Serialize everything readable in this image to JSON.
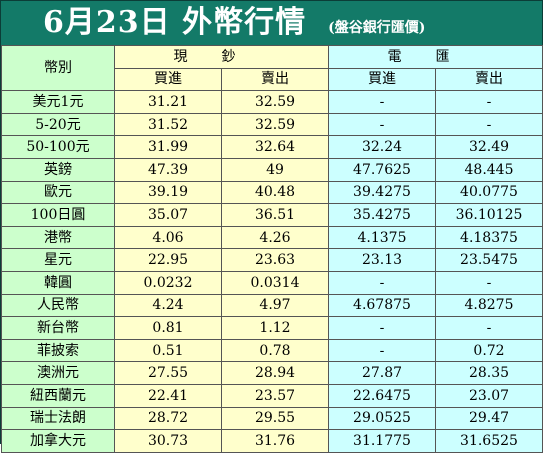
{
  "header": {
    "title": "6月23日 外幣行情",
    "subtitle": "(盤谷銀行匯價)"
  },
  "table": {
    "corner_label": "幣別",
    "groups": [
      "現鈔",
      "電匯"
    ],
    "subheaders": [
      "買進",
      "賣出",
      "買進",
      "賣出"
    ],
    "rows": [
      {
        "currency": "美元1元",
        "cash_buy": "31.21",
        "cash_sell": "32.59",
        "tt_buy": "-",
        "tt_sell": "-"
      },
      {
        "currency": "5-20元",
        "cash_buy": "31.52",
        "cash_sell": "32.59",
        "tt_buy": "-",
        "tt_sell": "-"
      },
      {
        "currency": "50-100元",
        "cash_buy": "31.99",
        "cash_sell": "32.64",
        "tt_buy": "32.24",
        "tt_sell": "32.49"
      },
      {
        "currency": "英鎊",
        "cash_buy": "47.39",
        "cash_sell": "49",
        "tt_buy": "47.7625",
        "tt_sell": "48.445"
      },
      {
        "currency": "歐元",
        "cash_buy": "39.19",
        "cash_sell": "40.48",
        "tt_buy": "39.4275",
        "tt_sell": "40.0775"
      },
      {
        "currency": "100日圓",
        "cash_buy": "35.07",
        "cash_sell": "36.51",
        "tt_buy": "35.4275",
        "tt_sell": "36.10125"
      },
      {
        "currency": "港幣",
        "cash_buy": "4.06",
        "cash_sell": "4.26",
        "tt_buy": "4.1375",
        "tt_sell": "4.18375"
      },
      {
        "currency": "星元",
        "cash_buy": "22.95",
        "cash_sell": "23.63",
        "tt_buy": "23.13",
        "tt_sell": "23.5475"
      },
      {
        "currency": "韓圓",
        "cash_buy": "0.0232",
        "cash_sell": "0.0314",
        "tt_buy": "-",
        "tt_sell": "-"
      },
      {
        "currency": "人民幣",
        "cash_buy": "4.24",
        "cash_sell": "4.97",
        "tt_buy": "4.67875",
        "tt_sell": "4.8275"
      },
      {
        "currency": "新台幣",
        "cash_buy": "0.81",
        "cash_sell": "1.12",
        "tt_buy": "-",
        "tt_sell": "-"
      },
      {
        "currency": "菲披索",
        "cash_buy": "0.51",
        "cash_sell": "0.78",
        "tt_buy": "-",
        "tt_sell": "0.72"
      },
      {
        "currency": "澳洲元",
        "cash_buy": "27.55",
        "cash_sell": "28.94",
        "tt_buy": "27.87",
        "tt_sell": "28.35"
      },
      {
        "currency": "紐西蘭元",
        "cash_buy": "22.41",
        "cash_sell": "23.57",
        "tt_buy": "22.6475",
        "tt_sell": "23.07"
      },
      {
        "currency": "瑞士法朗",
        "cash_buy": "28.72",
        "cash_sell": "29.55",
        "tt_buy": "29.0525",
        "tt_sell": "29.47"
      },
      {
        "currency": "加拿大元",
        "cash_buy": "30.73",
        "cash_sell": "31.76",
        "tt_buy": "31.1775",
        "tt_sell": "31.6525"
      }
    ]
  },
  "colors": {
    "header_bg": "#137a68",
    "label_bg": "#ccffcc",
    "cash_bg": "#ffffcc",
    "tt_bg": "#ccffff"
  }
}
